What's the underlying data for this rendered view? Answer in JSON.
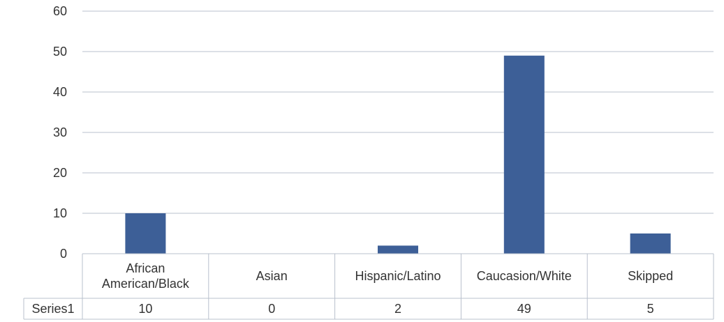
{
  "chart_data": {
    "type": "bar",
    "categories": [
      "African\nAmerican/Black",
      "Asian",
      "Hispanic/Latino",
      "Caucasion/White",
      "Skipped"
    ],
    "series": [
      {
        "name": "Series1",
        "values": [
          10,
          0,
          2,
          49,
          5
        ]
      }
    ],
    "ylim": [
      0,
      60
    ],
    "yticks": [
      0,
      10,
      20,
      30,
      40,
      50,
      60
    ],
    "grid": true,
    "legend": "data-table",
    "table_row_label": "Series1",
    "table_values": [
      "10",
      "0",
      "2",
      "49",
      "5"
    ],
    "bar_color": "#3d5f97",
    "grid_color": "#b8c0cc"
  }
}
